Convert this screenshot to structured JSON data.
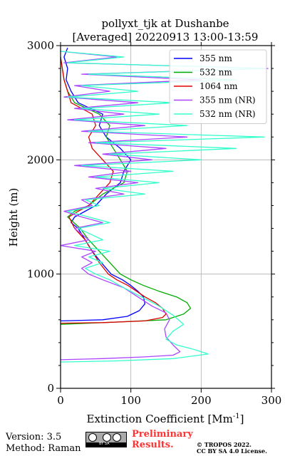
{
  "chart_data": {
    "type": "line",
    "title_line1": "pollyxt_tjk at Dushanbe",
    "title_line2": "[Averaged] 20220913 13:00-13:59",
    "xlabel": "Extinction Coefficient [Mm",
    "xlabel_sup": "-1",
    "xlabel_end": "]",
    "ylabel": "Height (m)",
    "xlim": [
      0,
      300
    ],
    "ylim": [
      0,
      3000
    ],
    "xticks": [
      "0",
      "100",
      "200",
      "300"
    ],
    "yticks": [
      "0",
      "1000",
      "2000",
      "3000"
    ],
    "grid": true,
    "legend_position": "top-right",
    "series": [
      {
        "name": "355 nm",
        "color": "#0000ff",
        "points": [
          [
            0,
            590
          ],
          [
            60,
            600
          ],
          [
            95,
            630
          ],
          [
            112,
            680
          ],
          [
            120,
            740
          ],
          [
            118,
            800
          ],
          [
            110,
            850
          ],
          [
            100,
            900
          ],
          [
            88,
            950
          ],
          [
            72,
            1000
          ],
          [
            58,
            1100
          ],
          [
            45,
            1200
          ],
          [
            35,
            1300
          ],
          [
            25,
            1400
          ],
          [
            15,
            1450
          ],
          [
            20,
            1500
          ],
          [
            35,
            1550
          ],
          [
            50,
            1600
          ],
          [
            65,
            1700
          ],
          [
            75,
            1750
          ],
          [
            85,
            1800
          ],
          [
            90,
            1900
          ],
          [
            100,
            2000
          ],
          [
            85,
            2100
          ],
          [
            65,
            2200
          ],
          [
            55,
            2300
          ],
          [
            60,
            2400
          ],
          [
            25,
            2500
          ],
          [
            15,
            2600
          ],
          [
            8,
            2700
          ],
          [
            10,
            2800
          ],
          [
            5,
            2900
          ],
          [
            10,
            2980
          ]
        ]
      },
      {
        "name": "532 nm",
        "color": "#00aa00",
        "points": [
          [
            0,
            560
          ],
          [
            80,
            580
          ],
          [
            150,
            600
          ],
          [
            175,
            650
          ],
          [
            185,
            700
          ],
          [
            180,
            750
          ],
          [
            165,
            800
          ],
          [
            140,
            850
          ],
          [
            118,
            900
          ],
          [
            100,
            950
          ],
          [
            85,
            1000
          ],
          [
            70,
            1100
          ],
          [
            55,
            1200
          ],
          [
            40,
            1300
          ],
          [
            28,
            1400
          ],
          [
            10,
            1500
          ],
          [
            20,
            1550
          ],
          [
            40,
            1600
          ],
          [
            60,
            1700
          ],
          [
            75,
            1750
          ],
          [
            90,
            1800
          ],
          [
            95,
            1900
          ],
          [
            85,
            2000
          ],
          [
            75,
            2100
          ],
          [
            65,
            2200
          ],
          [
            70,
            2300
          ],
          [
            55,
            2400
          ],
          [
            20,
            2500
          ],
          [
            10,
            2600
          ],
          [
            5,
            2700
          ],
          [
            0,
            2900
          ]
        ]
      },
      {
        "name": "1064 nm",
        "color": "#dd0000",
        "points": [
          [
            0,
            570
          ],
          [
            60,
            575
          ],
          [
            120,
            590
          ],
          [
            145,
            620
          ],
          [
            150,
            650
          ],
          [
            145,
            700
          ],
          [
            135,
            750
          ],
          [
            120,
            800
          ],
          [
            108,
            850
          ],
          [
            96,
            900
          ],
          [
            80,
            950
          ],
          [
            68,
            1000
          ],
          [
            55,
            1100
          ],
          [
            45,
            1200
          ],
          [
            35,
            1300
          ],
          [
            20,
            1400
          ],
          [
            12,
            1500
          ],
          [
            25,
            1550
          ],
          [
            40,
            1600
          ],
          [
            55,
            1700
          ],
          [
            70,
            1800
          ],
          [
            75,
            1900
          ],
          [
            60,
            2000
          ],
          [
            45,
            2100
          ],
          [
            40,
            2200
          ],
          [
            50,
            2300
          ],
          [
            45,
            2400
          ],
          [
            15,
            2500
          ],
          [
            10,
            2600
          ],
          [
            5,
            2700
          ],
          [
            0,
            2900
          ]
        ]
      },
      {
        "name": "355 nm (NR)",
        "color": "#aa44ff",
        "points": [
          [
            0,
            250
          ],
          [
            60,
            260
          ],
          [
            120,
            275
          ],
          [
            160,
            290
          ],
          [
            170,
            320
          ],
          [
            160,
            380
          ],
          [
            150,
            450
          ],
          [
            148,
            520
          ],
          [
            155,
            600
          ],
          [
            150,
            660
          ],
          [
            130,
            720
          ],
          [
            110,
            800
          ],
          [
            90,
            880
          ],
          [
            60,
            950
          ],
          [
            40,
            1000
          ],
          [
            30,
            1050
          ],
          [
            45,
            1100
          ],
          [
            30,
            1150
          ],
          [
            50,
            1200
          ],
          [
            0,
            1250
          ],
          [
            40,
            1300
          ],
          [
            20,
            1400
          ],
          [
            60,
            1450
          ],
          [
            30,
            1500
          ],
          [
            5,
            1550
          ],
          [
            45,
            1600
          ],
          [
            30,
            1650
          ],
          [
            90,
            1700
          ],
          [
            50,
            1750
          ],
          [
            110,
            1800
          ],
          [
            40,
            1850
          ],
          [
            100,
            1900
          ],
          [
            20,
            1950
          ],
          [
            130,
            2000
          ],
          [
            60,
            2050
          ],
          [
            150,
            2100
          ],
          [
            40,
            2150
          ],
          [
            180,
            2200
          ],
          [
            30,
            2250
          ],
          [
            120,
            2300
          ],
          [
            10,
            2350
          ],
          [
            90,
            2400
          ],
          [
            20,
            2450
          ],
          [
            110,
            2500
          ],
          [
            5,
            2550
          ],
          [
            70,
            2600
          ],
          [
            20,
            2650
          ],
          [
            200,
            2700
          ],
          [
            30,
            2750
          ],
          [
            295,
            2800
          ],
          [
            5,
            2850
          ],
          [
            80,
            2900
          ],
          [
            0,
            2950
          ]
        ]
      },
      {
        "name": "532 nm (NR)",
        "color": "#33ffcc",
        "points": [
          [
            0,
            230
          ],
          [
            80,
            240
          ],
          [
            160,
            260
          ],
          [
            210,
            300
          ],
          [
            190,
            340
          ],
          [
            165,
            380
          ],
          [
            150,
            430
          ],
          [
            160,
            500
          ],
          [
            175,
            560
          ],
          [
            160,
            640
          ],
          [
            140,
            720
          ],
          [
            115,
            800
          ],
          [
            90,
            880
          ],
          [
            70,
            950
          ],
          [
            50,
            1000
          ],
          [
            35,
            1050
          ],
          [
            60,
            1100
          ],
          [
            40,
            1150
          ],
          [
            70,
            1200
          ],
          [
            20,
            1250
          ],
          [
            60,
            1300
          ],
          [
            25,
            1400
          ],
          [
            70,
            1450
          ],
          [
            40,
            1500
          ],
          [
            10,
            1550
          ],
          [
            55,
            1600
          ],
          [
            35,
            1650
          ],
          [
            120,
            1700
          ],
          [
            60,
            1750
          ],
          [
            140,
            1800
          ],
          [
            50,
            1850
          ],
          [
            160,
            1900
          ],
          [
            30,
            1950
          ],
          [
            200,
            2000
          ],
          [
            70,
            2050
          ],
          [
            250,
            2100
          ],
          [
            50,
            2150
          ],
          [
            290,
            2200
          ],
          [
            40,
            2250
          ],
          [
            180,
            2300
          ],
          [
            20,
            2350
          ],
          [
            140,
            2400
          ],
          [
            30,
            2450
          ],
          [
            160,
            2500
          ],
          [
            10,
            2550
          ],
          [
            110,
            2600
          ],
          [
            30,
            2650
          ],
          [
            250,
            2700
          ],
          [
            40,
            2750
          ],
          [
            290,
            2800
          ],
          [
            10,
            2850
          ],
          [
            90,
            2900
          ],
          [
            0,
            2950
          ]
        ]
      }
    ]
  },
  "footer": {
    "version": "Version: 3.5",
    "method": "Method: Raman",
    "cc_text": "BY   SA",
    "preliminary_line1": "Preliminary",
    "preliminary_line2": "Results.",
    "copyright_line1": "© TROPOS 2022.",
    "copyright_line2": "CC BY SA 4.0 License."
  }
}
